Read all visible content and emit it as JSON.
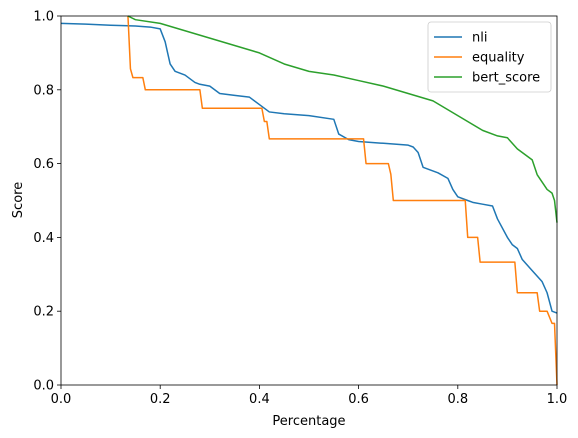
{
  "chart_data": {
    "type": "line",
    "xlabel": "Percentage",
    "ylabel": "Score",
    "xlim": [
      0,
      1
    ],
    "ylim": [
      0,
      1
    ],
    "xticks": [
      "0.0",
      "0.2",
      "0.4",
      "0.6",
      "0.8",
      "1.0"
    ],
    "yticks": [
      "0.0",
      "0.2",
      "0.4",
      "0.6",
      "0.8",
      "1.0"
    ],
    "grid": false,
    "legend": "top-right",
    "series": [
      {
        "name": "nli",
        "color": "#1f77b4",
        "x": [
          0,
          0.05,
          0.1,
          0.15,
          0.18,
          0.2,
          0.21,
          0.215,
          0.22,
          0.23,
          0.25,
          0.27,
          0.28,
          0.3,
          0.32,
          0.35,
          0.38,
          0.4,
          0.42,
          0.45,
          0.5,
          0.55,
          0.56,
          0.58,
          0.6,
          0.65,
          0.7,
          0.71,
          0.72,
          0.73,
          0.76,
          0.78,
          0.79,
          0.8,
          0.82,
          0.83,
          0.85,
          0.87,
          0.88,
          0.9,
          0.91,
          0.92,
          0.93,
          0.95,
          0.97,
          0.98,
          0.99,
          1.0
        ],
        "y": [
          0.98,
          0.978,
          0.975,
          0.973,
          0.97,
          0.965,
          0.93,
          0.9,
          0.87,
          0.85,
          0.84,
          0.82,
          0.815,
          0.81,
          0.79,
          0.785,
          0.78,
          0.76,
          0.74,
          0.735,
          0.73,
          0.72,
          0.68,
          0.665,
          0.66,
          0.655,
          0.65,
          0.645,
          0.63,
          0.59,
          0.575,
          0.56,
          0.53,
          0.51,
          0.5,
          0.495,
          0.49,
          0.485,
          0.45,
          0.4,
          0.38,
          0.37,
          0.34,
          0.31,
          0.28,
          0.25,
          0.2,
          0.195
        ]
      },
      {
        "name": "equality",
        "color": "#ff7f0e",
        "x": [
          0.135,
          0.14,
          0.145,
          0.165,
          0.17,
          0.28,
          0.285,
          0.405,
          0.41,
          0.415,
          0.42,
          0.61,
          0.615,
          0.66,
          0.665,
          0.67,
          0.815,
          0.82,
          0.84,
          0.845,
          0.915,
          0.92,
          0.96,
          0.965,
          0.98,
          0.99,
          0.995,
          1.0
        ],
        "y": [
          1.0,
          0.857,
          0.833,
          0.833,
          0.8,
          0.8,
          0.75,
          0.75,
          0.714,
          0.714,
          0.667,
          0.667,
          0.6,
          0.6,
          0.571,
          0.5,
          0.5,
          0.4,
          0.4,
          0.333,
          0.333,
          0.25,
          0.25,
          0.2,
          0.2,
          0.167,
          0.167,
          0.0
        ]
      },
      {
        "name": "bert_score",
        "color": "#2ca02c",
        "x": [
          0.135,
          0.15,
          0.2,
          0.25,
          0.3,
          0.35,
          0.4,
          0.45,
          0.5,
          0.55,
          0.6,
          0.65,
          0.7,
          0.75,
          0.8,
          0.85,
          0.88,
          0.9,
          0.92,
          0.95,
          0.96,
          0.97,
          0.98,
          0.99,
          0.995,
          1.0
        ],
        "y": [
          1.0,
          0.99,
          0.98,
          0.96,
          0.94,
          0.92,
          0.9,
          0.87,
          0.85,
          0.84,
          0.825,
          0.81,
          0.79,
          0.77,
          0.73,
          0.69,
          0.675,
          0.67,
          0.64,
          0.61,
          0.57,
          0.55,
          0.53,
          0.52,
          0.5,
          0.44
        ]
      }
    ]
  }
}
